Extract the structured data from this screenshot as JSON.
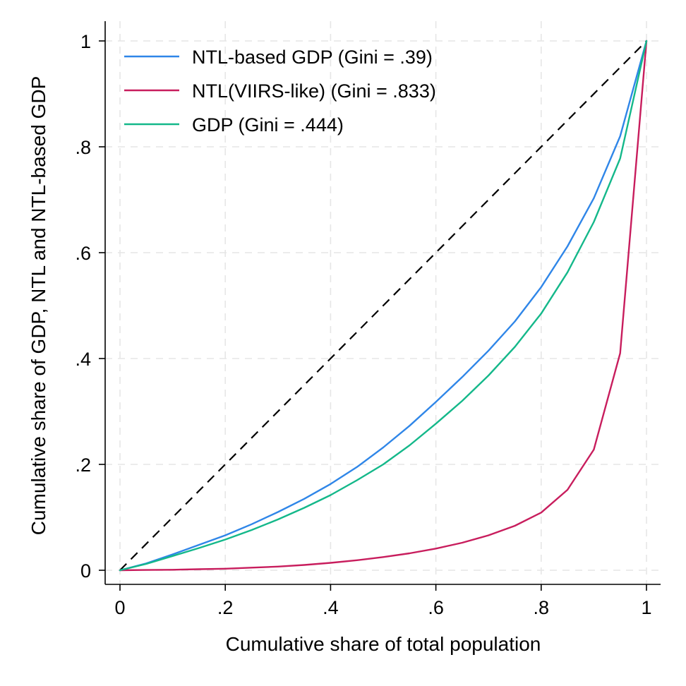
{
  "chart_data": {
    "type": "line",
    "xlabel": "Cumulative share of total population",
    "ylabel": "Cumulative share of GDP, NTL and NTL-based GDP",
    "xlim": [
      0,
      1
    ],
    "ylim": [
      0,
      1
    ],
    "x_ticks": [
      {
        "value": 0,
        "label": "0"
      },
      {
        "value": 0.2,
        "label": ".2"
      },
      {
        "value": 0.4,
        "label": ".4"
      },
      {
        "value": 0.6,
        "label": ".6"
      },
      {
        "value": 0.8,
        "label": ".8"
      },
      {
        "value": 1,
        "label": "1"
      }
    ],
    "y_ticks": [
      {
        "value": 0,
        "label": "0"
      },
      {
        "value": 0.2,
        "label": ".2"
      },
      {
        "value": 0.4,
        "label": ".4"
      },
      {
        "value": 0.6,
        "label": ".6"
      },
      {
        "value": 0.8,
        "label": ".8"
      },
      {
        "value": 1,
        "label": "1"
      }
    ],
    "grid": true,
    "legend_position": "top-left",
    "x": [
      0,
      0.05,
      0.1,
      0.15,
      0.2,
      0.25,
      0.3,
      0.35,
      0.4,
      0.45,
      0.5,
      0.55,
      0.6,
      0.65,
      0.7,
      0.75,
      0.8,
      0.85,
      0.9,
      0.95,
      1.0
    ],
    "series": [
      {
        "name": "NTL-based GDP (Gini = .39)",
        "color": "#2f86e8",
        "values": [
          0,
          0.013,
          0.03,
          0.048,
          0.066,
          0.087,
          0.11,
          0.135,
          0.163,
          0.195,
          0.232,
          0.273,
          0.318,
          0.365,
          0.415,
          0.47,
          0.535,
          0.612,
          0.703,
          0.82,
          1.0
        ]
      },
      {
        "name": "NTL(VIIRS-like) (Gini = .833)",
        "color": "#c81d5d",
        "values": [
          0,
          0.0005,
          0.001,
          0.002,
          0.003,
          0.005,
          0.007,
          0.01,
          0.014,
          0.019,
          0.025,
          0.032,
          0.041,
          0.052,
          0.066,
          0.084,
          0.109,
          0.152,
          0.228,
          0.41,
          1.0
        ]
      },
      {
        "name": "GDP (Gini = .444)",
        "color": "#14b88a",
        "values": [
          0,
          0.012,
          0.027,
          0.042,
          0.058,
          0.076,
          0.096,
          0.118,
          0.142,
          0.17,
          0.2,
          0.236,
          0.277,
          0.32,
          0.368,
          0.422,
          0.485,
          0.563,
          0.658,
          0.778,
          1.0
        ]
      }
    ],
    "reference_line": {
      "type": "equality-diagonal",
      "color": "#000000",
      "style": "dashed",
      "x": [
        0,
        1
      ],
      "y": [
        0,
        1
      ]
    }
  }
}
